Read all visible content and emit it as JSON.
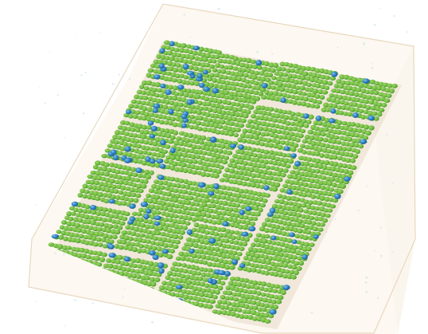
{
  "figure": {
    "subject": "molecular-assembly-render",
    "colors": {
      "background": "#ffffff",
      "box_fill": "#fbf3e6",
      "box_edge": "#e8d8bf",
      "solvent_dot": "#cfe7ee",
      "tail_light": "#9fd46a",
      "tail_mid": "#6fbd3f",
      "tail_dark": "#3f8f25",
      "headgroup": "#2f7fbf",
      "headgroup_dark": "#1c5f99",
      "shadow": "#d9c9b0"
    }
  }
}
